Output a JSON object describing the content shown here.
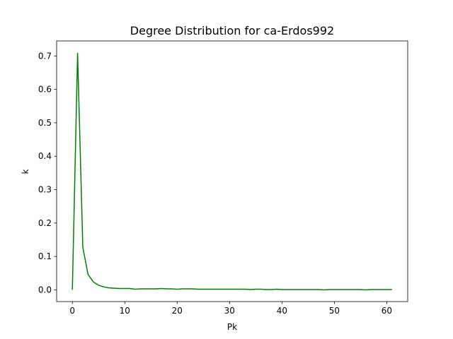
{
  "chart_data": {
    "type": "line",
    "title": "Degree Distribution for ca-Erdos992",
    "xlabel": "Pk",
    "ylabel": "k",
    "xlim": [
      -3,
      64
    ],
    "ylim": [
      -0.035,
      0.745
    ],
    "xticks": [
      0,
      10,
      20,
      30,
      40,
      50,
      60
    ],
    "yticks": [
      0.0,
      0.1,
      0.2,
      0.3,
      0.4,
      0.5,
      0.6,
      0.7
    ],
    "ytick_labels": [
      "0.0",
      "0.1",
      "0.2",
      "0.3",
      "0.4",
      "0.5",
      "0.6",
      "0.7"
    ],
    "grid": false,
    "series": [
      {
        "color": "#008000",
        "x": [
          0,
          1,
          2,
          3,
          4,
          5,
          6,
          7,
          8,
          9,
          10,
          11,
          12,
          13,
          14,
          15,
          16,
          17,
          18,
          19,
          20,
          21,
          22,
          23,
          24,
          25,
          26,
          27,
          28,
          29,
          30,
          31,
          32,
          33,
          34,
          35,
          36,
          37,
          38,
          39,
          40,
          41,
          42,
          43,
          44,
          45,
          46,
          47,
          48,
          49,
          50,
          51,
          52,
          53,
          54,
          55,
          56,
          57,
          58,
          59,
          60,
          61
        ],
        "y": [
          0.0,
          0.708,
          0.127,
          0.046,
          0.024,
          0.014,
          0.009,
          0.006,
          0.005,
          0.004,
          0.004,
          0.004,
          0.002,
          0.003,
          0.003,
          0.003,
          0.003,
          0.004,
          0.003,
          0.003,
          0.002,
          0.003,
          0.003,
          0.003,
          0.002,
          0.002,
          0.002,
          0.002,
          0.002,
          0.002,
          0.002,
          0.002,
          0.002,
          0.002,
          0.001,
          0.002,
          0.002,
          0.001,
          0.001,
          0.002,
          0.001,
          0.001,
          0.001,
          0.001,
          0.001,
          0.001,
          0.001,
          0.001,
          0.0,
          0.001,
          0.001,
          0.001,
          0.001,
          0.001,
          0.001,
          0.001,
          0.0,
          0.001,
          0.001,
          0.001,
          0.001,
          0.001
        ]
      }
    ]
  }
}
